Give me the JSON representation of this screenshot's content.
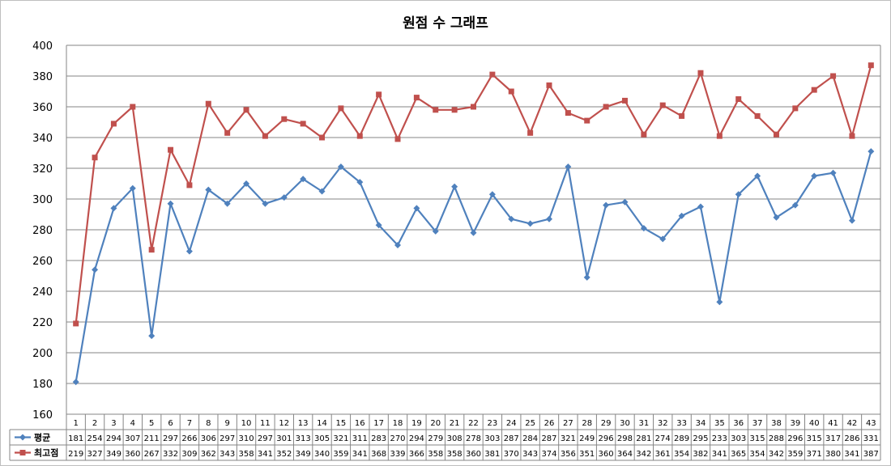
{
  "chart_data": {
    "type": "line",
    "title": "원점 수 그래프",
    "categories": [
      "1",
      "2",
      "3",
      "4",
      "5",
      "6",
      "7",
      "8",
      "9",
      "10",
      "11",
      "12",
      "13",
      "14",
      "15",
      "16",
      "17",
      "18",
      "19",
      "20",
      "21",
      "22",
      "23",
      "24",
      "25",
      "26",
      "27",
      "28",
      "29",
      "30",
      "31",
      "32",
      "33",
      "34",
      "35",
      "36",
      "37",
      "38",
      "39",
      "40",
      "41",
      "42",
      "43"
    ],
    "series": [
      {
        "name": "평균",
        "color": "#4f81bd",
        "marker": "diamond",
        "values": [
          181,
          254,
          294,
          307,
          211,
          297,
          266,
          306,
          297,
          310,
          297,
          301,
          313,
          305,
          321,
          311,
          283,
          270,
          294,
          279,
          308,
          278,
          303,
          287,
          284,
          287,
          321,
          249,
          296,
          298,
          281,
          274,
          289,
          295,
          233,
          303,
          315,
          288,
          296,
          315,
          317,
          286,
          331
        ]
      },
      {
        "name": "최고점",
        "color": "#c0504d",
        "marker": "square",
        "values": [
          219,
          327,
          349,
          360,
          267,
          332,
          309,
          362,
          343,
          358,
          341,
          352,
          349,
          340,
          359,
          341,
          368,
          339,
          366,
          358,
          358,
          360,
          381,
          370,
          343,
          374,
          356,
          351,
          360,
          364,
          342,
          361,
          354,
          382,
          341,
          365,
          354,
          342,
          359,
          371,
          380,
          341,
          387
        ]
      }
    ],
    "ylim": [
      160,
      400
    ],
    "yticks": [
      160,
      180,
      200,
      220,
      240,
      260,
      280,
      300,
      320,
      340,
      360,
      380,
      400
    ],
    "grid": true,
    "legend": "data-table"
  }
}
